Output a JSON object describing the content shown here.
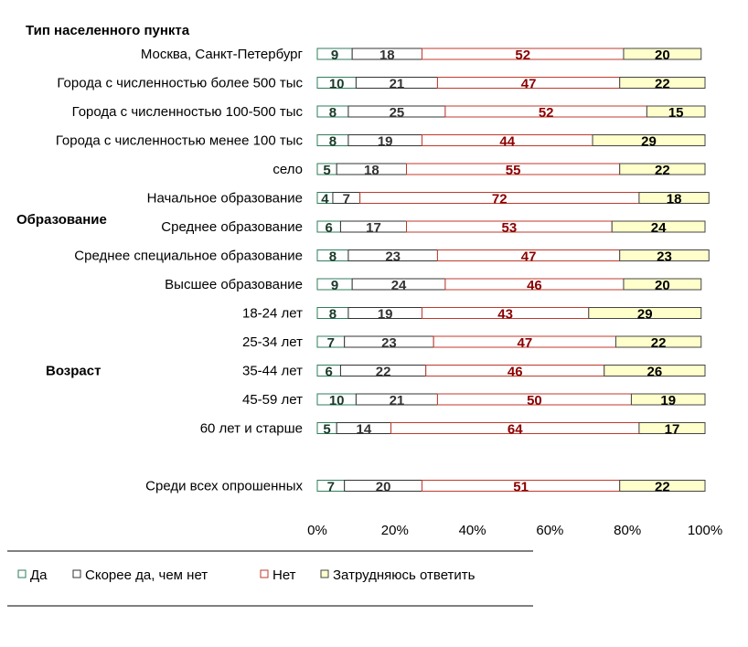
{
  "chart_data": {
    "type": "bar",
    "orientation": "horizontal",
    "stacked": "percent",
    "group_labels": [
      {
        "text": "Тип населенного пункта",
        "category_index": 0
      },
      {
        "text": "Образование",
        "category_index": 6
      },
      {
        "text": "Возраст",
        "category_index": 11
      }
    ],
    "categories": [
      "Москва, Санкт-Петербург",
      "Города с численностью более 500 тыс",
      "Города с численностью 100-500 тыс",
      "Города с численностью менее 100 тыс",
      "село",
      "Начальное образование",
      "Среднее образование",
      "Среднее специальное образование",
      "Высшее образование",
      "18-24 лет",
      "25-34 лет",
      "35-44 лет",
      "45-59 лет",
      "60 лет и старше",
      "",
      "Среди всех опрошенных"
    ],
    "series": [
      {
        "name": "Да",
        "color": "#ffffff",
        "edge": "#2e7d5b",
        "label_color": "#1a3a2a",
        "values": [
          9,
          10,
          8,
          8,
          5,
          4,
          6,
          8,
          9,
          8,
          7,
          6,
          10,
          5,
          null,
          7
        ]
      },
      {
        "name": "Скорее да, чем нет",
        "color": "#ffffff",
        "edge": "#333333",
        "label_color": "#333333",
        "values": [
          18,
          21,
          25,
          19,
          18,
          7,
          17,
          23,
          24,
          19,
          23,
          22,
          21,
          14,
          null,
          20
        ]
      },
      {
        "name": "Нет",
        "color": "#ffffff",
        "edge": "#c0392b",
        "label_color": "#8b0000",
        "values": [
          52,
          47,
          52,
          44,
          55,
          72,
          53,
          47,
          46,
          43,
          47,
          46,
          50,
          64,
          null,
          51
        ]
      },
      {
        "name": "Затрудняюсь ответить",
        "color": "#ffffcc",
        "edge": "#444444",
        "label_color": "#000000",
        "values": [
          20,
          22,
          15,
          29,
          22,
          18,
          24,
          23,
          20,
          29,
          22,
          26,
          19,
          17,
          null,
          22
        ]
      }
    ],
    "xlim": [
      0,
      100
    ],
    "xticks": [
      "0%",
      "20%",
      "40%",
      "60%",
      "80%",
      "100%"
    ],
    "grid": false,
    "legend_position": "bottom"
  }
}
